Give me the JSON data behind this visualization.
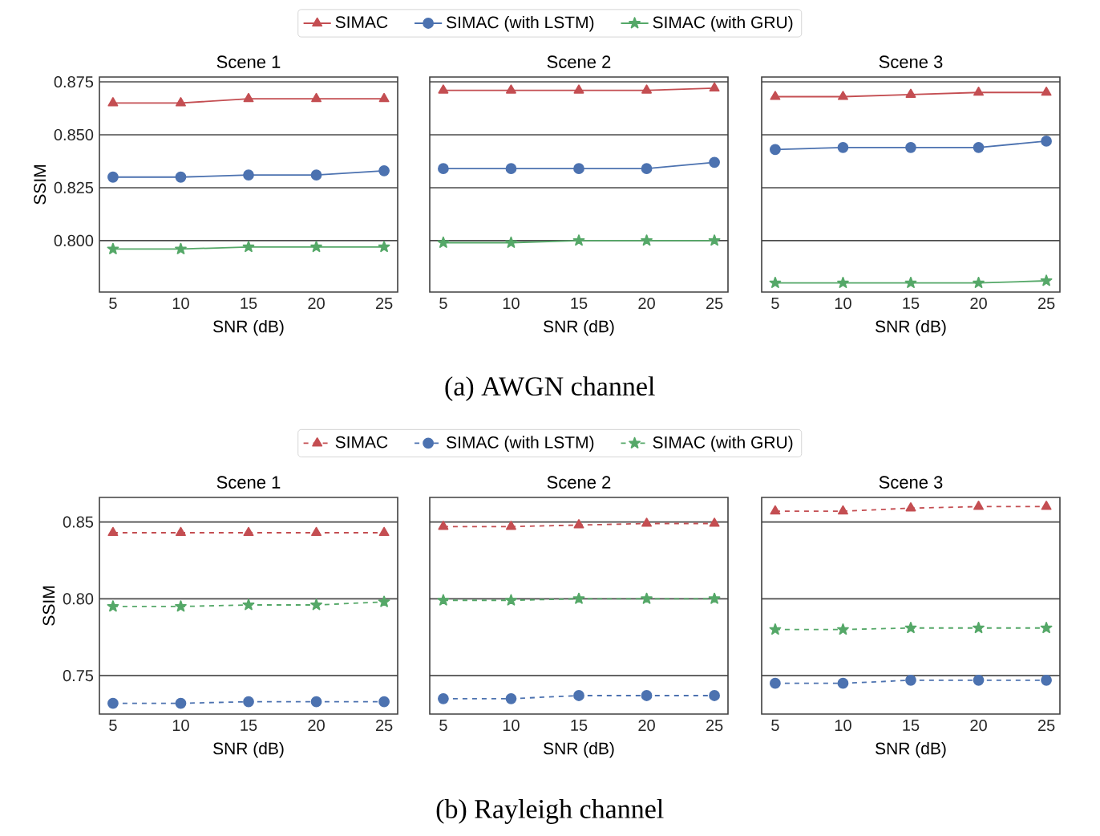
{
  "chart_data": [
    {
      "type": "line",
      "title": "Scene 1",
      "xlabel": "SNR (dB)",
      "ylabel": "SSIM",
      "x": [
        5,
        10,
        15,
        20,
        25
      ],
      "xlim": [
        4,
        26
      ],
      "xticks": [
        5,
        10,
        15,
        20,
        25
      ],
      "ylim": [
        0.7757,
        0.8773
      ],
      "yticks": [
        {
          "value": 0.8,
          "label": "0.800"
        },
        {
          "value": 0.825,
          "label": "0.825"
        },
        {
          "value": 0.85,
          "label": "0.850"
        },
        {
          "value": 0.875,
          "label": "0.875"
        }
      ],
      "grid": "y",
      "legend": "top",
      "line_style": "solid",
      "annotations": [
        "(a) AWGN channel"
      ],
      "series": [
        {
          "name": "SIMAC",
          "color": "#c44e52",
          "marker": "triangle",
          "values": [
            0.865,
            0.865,
            0.867,
            0.867,
            0.867
          ]
        },
        {
          "name": "SIMAC (with LSTM)",
          "color": "#4c72b0",
          "marker": "circle",
          "values": [
            0.83,
            0.83,
            0.831,
            0.831,
            0.833
          ]
        },
        {
          "name": "SIMAC (with GRU)",
          "color": "#55a868",
          "marker": "star",
          "values": [
            0.796,
            0.796,
            0.797,
            0.797,
            0.797
          ]
        }
      ]
    },
    {
      "type": "line",
      "title": "Scene 2",
      "xlabel": "SNR (dB)",
      "x": [
        5,
        10,
        15,
        20,
        25
      ],
      "xlim": [
        4,
        26
      ],
      "xticks": [
        5,
        10,
        15,
        20,
        25
      ],
      "ylim": [
        0.7757,
        0.8773
      ],
      "yticks": [
        0.8,
        0.825,
        0.85,
        0.875
      ],
      "grid": "y",
      "tick_labels": "x",
      "line_style": "solid",
      "series": [
        {
          "color": "#c44e52",
          "marker": "triangle",
          "values": [
            0.871,
            0.871,
            0.871,
            0.871,
            0.872
          ]
        },
        {
          "color": "#4c72b0",
          "marker": "circle",
          "values": [
            0.834,
            0.834,
            0.834,
            0.834,
            0.837
          ]
        },
        {
          "color": "#55a868",
          "marker": "star",
          "values": [
            0.799,
            0.799,
            0.8,
            0.8,
            0.8
          ]
        }
      ]
    },
    {
      "type": "line",
      "title": "Scene 3",
      "xlabel": "SNR (dB)",
      "x": [
        5,
        10,
        15,
        20,
        25
      ],
      "xlim": [
        4,
        26
      ],
      "xticks": [
        5,
        10,
        15,
        20,
        25
      ],
      "ylim": [
        0.7757,
        0.8773
      ],
      "yticks": [
        0.8,
        0.825,
        0.85,
        0.875
      ],
      "grid": "y",
      "tick_labels": "x",
      "line_style": "solid",
      "series": [
        {
          "color": "#c44e52",
          "marker": "triangle",
          "values": [
            0.868,
            0.868,
            0.869,
            0.87,
            0.87
          ]
        },
        {
          "color": "#4c72b0",
          "marker": "circle",
          "values": [
            0.843,
            0.844,
            0.844,
            0.844,
            0.847
          ]
        },
        {
          "color": "#55a868",
          "marker": "star",
          "values": [
            0.78,
            0.78,
            0.78,
            0.78,
            0.781
          ]
        }
      ]
    },
    {
      "type": "line",
      "title": "Scene 1",
      "xlabel": "SNR (dB)",
      "ylabel": "SSIM",
      "x": [
        5,
        10,
        15,
        20,
        25
      ],
      "xlim": [
        4,
        26
      ],
      "xticks": [
        5,
        10,
        15,
        20,
        25
      ],
      "ylim": [
        0.725,
        0.866
      ],
      "yticks": [
        {
          "value": 0.75,
          "label": "0.75"
        },
        {
          "value": 0.8,
          "label": "0.80"
        },
        {
          "value": 0.85,
          "label": "0.85"
        }
      ],
      "grid": "y",
      "legend": "top",
      "line_style": "dashed",
      "annotations": [
        "(b) Rayleigh channel"
      ],
      "series": [
        {
          "name": "SIMAC",
          "color": "#c44e52",
          "marker": "triangle",
          "values": [
            0.843,
            0.843,
            0.843,
            0.843,
            0.843
          ]
        },
        {
          "name": "SIMAC (with LSTM)",
          "color": "#4c72b0",
          "marker": "circle",
          "values": [
            0.732,
            0.732,
            0.733,
            0.733,
            0.733
          ]
        },
        {
          "name": "SIMAC (with GRU)",
          "color": "#55a868",
          "marker": "star",
          "values": [
            0.795,
            0.795,
            0.796,
            0.796,
            0.798
          ]
        }
      ]
    },
    {
      "type": "line",
      "title": "Scene 2",
      "xlabel": "SNR (dB)",
      "x": [
        5,
        10,
        15,
        20,
        25
      ],
      "xlim": [
        4,
        26
      ],
      "xticks": [
        5,
        10,
        15,
        20,
        25
      ],
      "ylim": [
        0.725,
        0.866
      ],
      "yticks": [
        0.75,
        0.8,
        0.85
      ],
      "grid": "y",
      "tick_labels": "x",
      "line_style": "dashed",
      "series": [
        {
          "color": "#c44e52",
          "marker": "triangle",
          "values": [
            0.847,
            0.847,
            0.848,
            0.849,
            0.849
          ]
        },
        {
          "color": "#4c72b0",
          "marker": "circle",
          "values": [
            0.735,
            0.735,
            0.737,
            0.737,
            0.737
          ]
        },
        {
          "color": "#55a868",
          "marker": "star",
          "values": [
            0.799,
            0.799,
            0.8,
            0.8,
            0.8
          ]
        }
      ]
    },
    {
      "type": "line",
      "title": "Scene 3",
      "xlabel": "SNR (dB)",
      "x": [
        5,
        10,
        15,
        20,
        25
      ],
      "xlim": [
        4,
        26
      ],
      "xticks": [
        5,
        10,
        15,
        20,
        25
      ],
      "ylim": [
        0.725,
        0.866
      ],
      "yticks": [
        0.75,
        0.8,
        0.85
      ],
      "grid": "y",
      "tick_labels": "x",
      "line_style": "dashed",
      "series": [
        {
          "color": "#c44e52",
          "marker": "triangle",
          "values": [
            0.857,
            0.857,
            0.859,
            0.86,
            0.86
          ]
        },
        {
          "color": "#4c72b0",
          "marker": "circle",
          "values": [
            0.745,
            0.745,
            0.747,
            0.747,
            0.747
          ]
        },
        {
          "color": "#55a868",
          "marker": "star",
          "values": [
            0.78,
            0.78,
            0.781,
            0.781,
            0.781
          ]
        }
      ]
    }
  ]
}
